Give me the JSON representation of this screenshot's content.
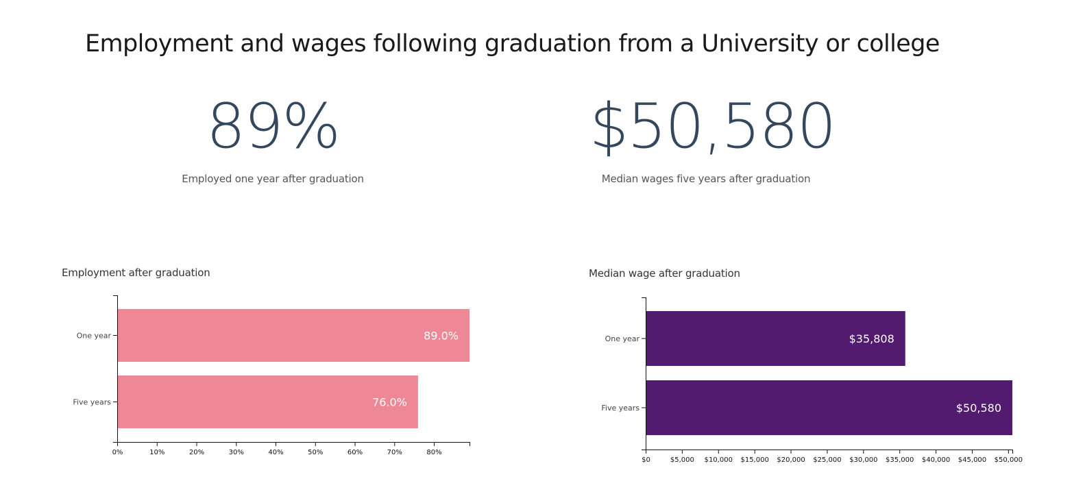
{
  "page": {
    "title": "Employment and wages following graduation from a University or college"
  },
  "stats": [
    {
      "value": "89%",
      "caption": "Employed one year after graduation"
    },
    {
      "value": "$50,580",
      "caption": "Median wages five years after graduation"
    }
  ],
  "colors": {
    "employment_bar": "#ef8896",
    "wage_bar": "#521b6f",
    "axis": "#111111"
  },
  "chart_data": [
    {
      "type": "bar",
      "orientation": "horizontal",
      "title": "Employment after graduation",
      "categories": [
        "One year",
        "Five years"
      ],
      "values": [
        89.0,
        76.0
      ],
      "value_labels": [
        "89.0%",
        "76.0%"
      ],
      "xlim": [
        0,
        89
      ],
      "xticks": [
        0,
        10,
        20,
        30,
        40,
        50,
        60,
        70,
        80
      ],
      "xtick_labels": [
        "0%",
        "10%",
        "20%",
        "30%",
        "40%",
        "50%",
        "60%",
        "70%",
        "80%"
      ],
      "xlabel": "",
      "ylabel": "",
      "grid": false
    },
    {
      "type": "bar",
      "orientation": "horizontal",
      "title": "Median wage after graduation",
      "categories": [
        "One year",
        "Five years"
      ],
      "values": [
        35808,
        50580
      ],
      "value_labels": [
        "$35,808",
        "$50,580"
      ],
      "xlim": [
        0,
        50580
      ],
      "xticks": [
        0,
        5000,
        10000,
        15000,
        20000,
        25000,
        30000,
        35000,
        40000,
        45000,
        50000
      ],
      "xtick_labels": [
        "$0",
        "$5,000",
        "$10,000",
        "$15,000",
        "$20,000",
        "$25,000",
        "$30,000",
        "$35,000",
        "$40,000",
        "$45,000",
        "$50,000"
      ],
      "xlabel": "",
      "ylabel": "",
      "grid": false
    }
  ]
}
